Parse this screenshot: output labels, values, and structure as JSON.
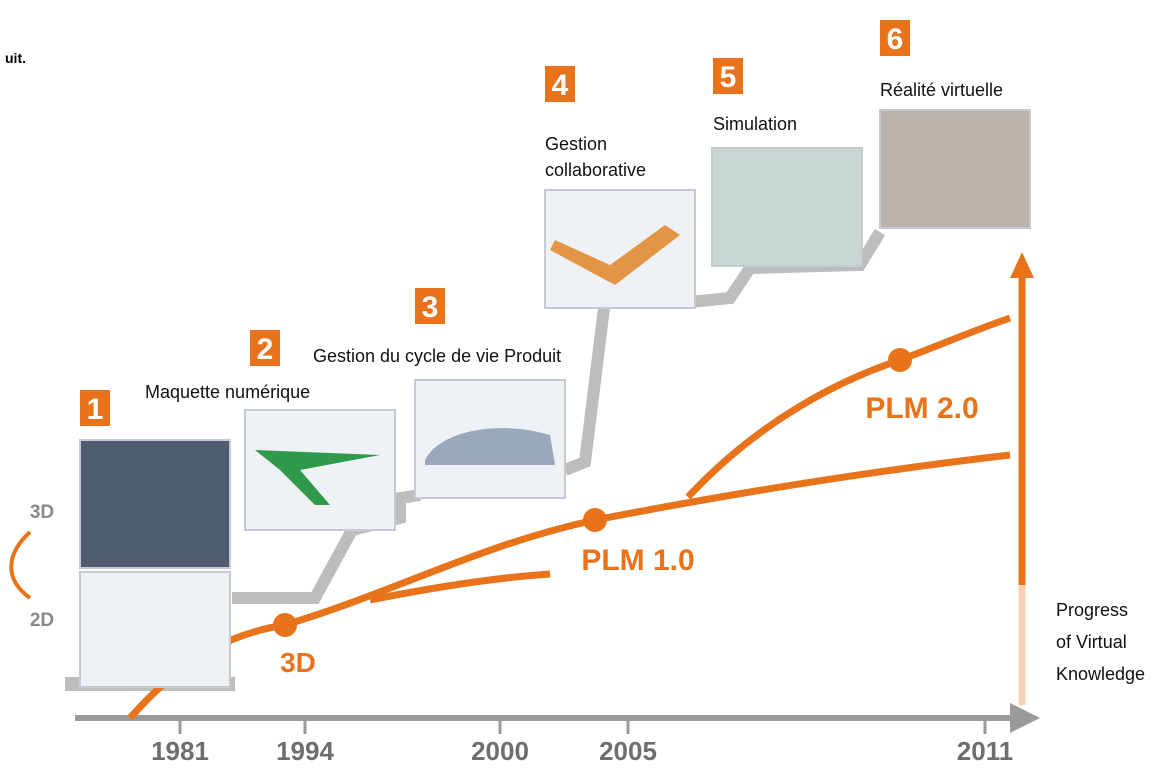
{
  "header_fragment": "uit.",
  "steps": [
    {
      "number": "1"
    },
    {
      "number": "2",
      "label_lines": [
        "Maquette numérique"
      ]
    },
    {
      "number": "3",
      "label_lines": [
        "Gestion du cycle de vie Produit"
      ]
    },
    {
      "number": "4",
      "label_lines": [
        "Gestion",
        "collaborative"
      ]
    },
    {
      "number": "5",
      "label_lines": [
        "Simulation"
      ]
    },
    {
      "number": "6",
      "label_lines": [
        "Réalité virtuelle"
      ]
    }
  ],
  "dimension_scale": [
    "3D",
    "2D"
  ],
  "milestones": [
    "3D",
    "PLM 1.0",
    "PLM 2.0"
  ],
  "axis_years": [
    "1981",
    "1994",
    "2000",
    "2005",
    "2011"
  ],
  "progress_label_lines": [
    "Progress",
    "of Virtual",
    "Knowledge"
  ]
}
